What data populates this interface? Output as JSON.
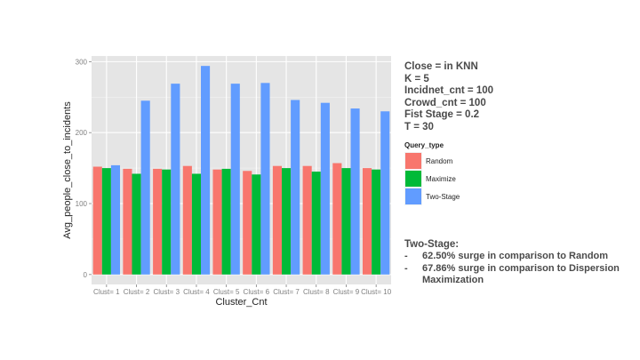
{
  "chart_data": {
    "type": "bar",
    "xlabel": "Cluster_Cnt",
    "ylabel": "Avg_people_close_to_incidents",
    "categories": [
      "Clust= 1",
      "Clust= 2",
      "Clust= 3",
      "Clust= 4",
      "Clust= 5",
      "Clust= 6",
      "Clust= 7",
      "Clust= 8",
      "Clust= 9",
      "Clust= 10"
    ],
    "ylim": [
      -14,
      308
    ],
    "yticks": [
      0,
      100,
      200,
      300
    ],
    "grid": true,
    "legend_position": "right",
    "legend_title": "Query_type",
    "series": [
      {
        "name": "Random",
        "color": "#F8766D",
        "values": [
          152,
          149,
          149,
          153,
          148,
          146,
          153,
          153,
          157,
          150
        ]
      },
      {
        "name": "Maximize",
        "color": "#00BA38",
        "values": [
          150,
          142,
          148,
          142,
          149,
          141,
          150,
          145,
          150,
          148
        ]
      },
      {
        "name": "Two-Stage",
        "color": "#619CFF",
        "values": [
          154,
          245,
          269,
          294,
          269,
          270,
          246,
          242,
          234,
          230
        ]
      }
    ]
  },
  "params": [
    "Close =  in KNN",
    "K = 5",
    "Incidnet_cnt = 100",
    "Crowd_cnt = 100",
    "Fist Stage = 0.2",
    "T = 30"
  ],
  "note": {
    "title": "Two-Stage:",
    "lines": [
      {
        "bullet": "-",
        "text": "62.50% surge in comparison to Random"
      },
      {
        "bullet": "-",
        "text": "67.86% surge in comparison to Dispersion Maximization"
      }
    ]
  }
}
